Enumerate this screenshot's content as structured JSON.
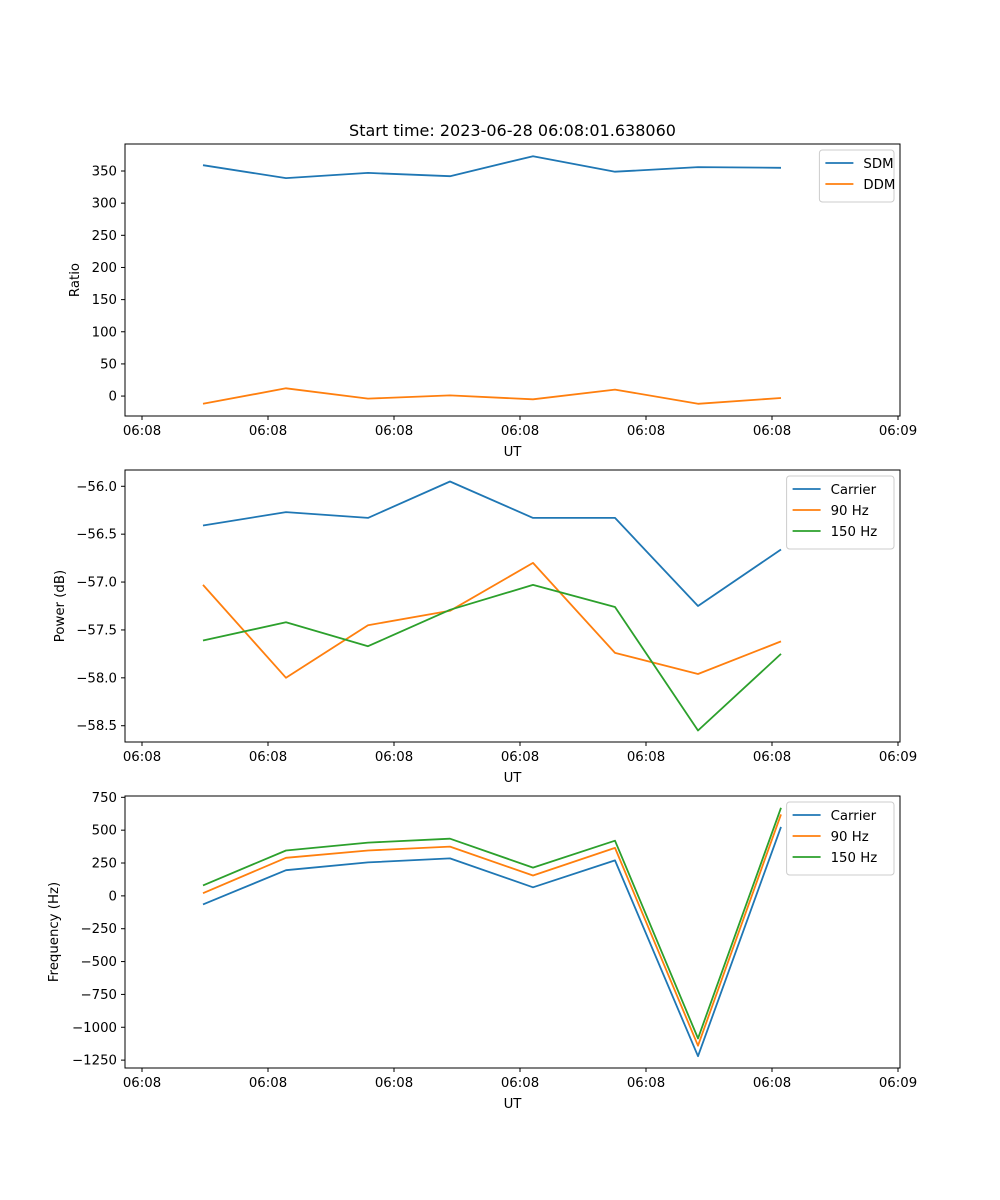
{
  "figure_title": "Start time: 2023-06-28 06:08:01.638060",
  "colors": {
    "blue": "#1f77b4",
    "orange": "#ff7f0e",
    "green": "#2ca02c"
  },
  "chart_data": [
    {
      "type": "line",
      "title": "Start time: 2023-06-28 06:08:01.638060",
      "xlabel": "UT",
      "ylabel": "Ratio",
      "xticks": [
        "06:08",
        "06:08",
        "06:08",
        "06:08",
        "06:08",
        "06:08",
        "06:08",
        "06:09"
      ],
      "yticks": [
        0,
        50,
        100,
        150,
        200,
        250,
        300,
        350
      ],
      "ylim": [
        -31,
        392
      ],
      "grid": false,
      "legend": "top-right",
      "series": [
        {
          "name": "SDM",
          "color": "#1f77b4",
          "values": [
            359,
            339,
            347,
            342,
            373,
            349,
            356,
            355
          ]
        },
        {
          "name": "DDM",
          "color": "#ff7f0e",
          "values": [
            -12,
            12,
            -4,
            1,
            -5,
            10,
            -12,
            -3
          ]
        }
      ]
    },
    {
      "type": "line",
      "title": "",
      "xlabel": "UT",
      "ylabel": "Power (dB)",
      "xticks": [
        "06:08",
        "06:08",
        "06:08",
        "06:08",
        "06:08",
        "06:08",
        "06:08",
        "06:09"
      ],
      "yticks": [
        -56.0,
        -56.5,
        -57.0,
        -57.5,
        -58.0,
        -58.5
      ],
      "ytick_labels": [
        "−56.0",
        "−56.5",
        "−57.0",
        "−57.5",
        "−58.0",
        "−58.5"
      ],
      "ylim": [
        -58.67,
        -55.83
      ],
      "grid": false,
      "legend": "top-right",
      "series": [
        {
          "name": "Carrier",
          "color": "#1f77b4",
          "values": [
            -56.41,
            -56.27,
            -56.33,
            -55.95,
            -56.33,
            -56.33,
            -57.25,
            -56.66
          ]
        },
        {
          "name": "90 Hz",
          "color": "#ff7f0e",
          "values": [
            -57.03,
            -58.0,
            -57.45,
            -57.3,
            -56.8,
            -57.74,
            -57.96,
            -57.62
          ]
        },
        {
          "name": "150 Hz",
          "color": "#2ca02c",
          "values": [
            -57.61,
            -57.42,
            -57.67,
            -57.29,
            -57.03,
            -57.26,
            -58.55,
            -57.75
          ]
        }
      ]
    },
    {
      "type": "line",
      "title": "",
      "xlabel": "UT",
      "ylabel": "Frequency (Hz)",
      "xticks": [
        "06:08",
        "06:08",
        "06:08",
        "06:08",
        "06:08",
        "06:08",
        "06:08",
        "06:09"
      ],
      "yticks": [
        750,
        500,
        250,
        0,
        -250,
        -500,
        -750,
        -1000,
        -1250
      ],
      "ytick_labels": [
        "750",
        "500",
        "250",
        "0",
        "−250",
        "−500",
        "−750",
        "−1000",
        "−1250"
      ],
      "ylim": [
        -1310,
        760
      ],
      "grid": false,
      "legend": "top-right",
      "series": [
        {
          "name": "Carrier",
          "color": "#1f77b4",
          "values": [
            -65,
            195,
            255,
            285,
            65,
            270,
            -1220,
            525
          ]
        },
        {
          "name": "90 Hz",
          "color": "#ff7f0e",
          "values": [
            20,
            290,
            345,
            375,
            155,
            365,
            -1140,
            620
          ]
        },
        {
          "name": "150 Hz",
          "color": "#2ca02c",
          "values": [
            80,
            345,
            405,
            435,
            215,
            420,
            -1085,
            670
          ]
        }
      ]
    }
  ]
}
